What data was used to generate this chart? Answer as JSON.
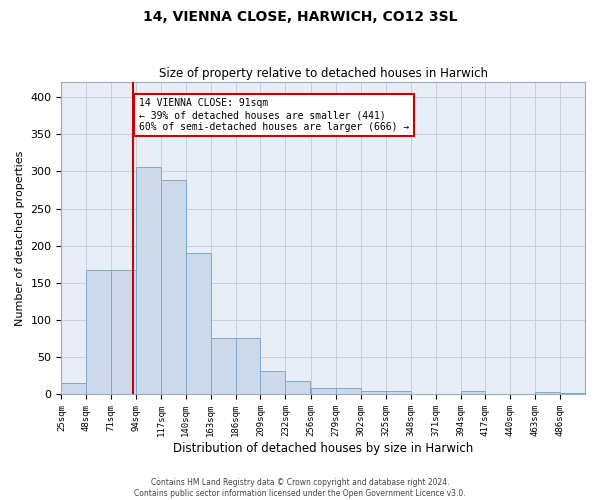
{
  "title": "14, VIENNA CLOSE, HARWICH, CO12 3SL",
  "subtitle": "Size of property relative to detached houses in Harwich",
  "xlabel": "Distribution of detached houses by size in Harwich",
  "ylabel": "Number of detached properties",
  "bar_color": "#ccd9ea",
  "bar_edgecolor": "#7fa8cc",
  "grid_color": "#c8d0dc",
  "background_color": "#e8eef5",
  "vline_x": 91,
  "vline_color": "#cc0000",
  "annotation_line1": "14 VIENNA CLOSE: 91sqm",
  "annotation_line2": "← 39% of detached houses are smaller (441)",
  "annotation_line3": "60% of semi-detached houses are larger (666) →",
  "annotation_box_color": "#cc0000",
  "footer_line1": "Contains HM Land Registry data © Crown copyright and database right 2024.",
  "footer_line2": "Contains public sector information licensed under the Open Government Licence v3.0.",
  "bin_edges": [
    25,
    48,
    71,
    94,
    117,
    140,
    163,
    186,
    209,
    232,
    256,
    279,
    302,
    325,
    348,
    371,
    394,
    417,
    440,
    463,
    486,
    509
  ],
  "values": [
    15,
    168,
    168,
    306,
    288,
    190,
    76,
    76,
    32,
    18,
    9,
    9,
    5,
    5,
    0,
    0,
    4,
    0,
    0,
    3,
    2
  ],
  "ylim": [
    0,
    420
  ],
  "yticks": [
    0,
    50,
    100,
    150,
    200,
    250,
    300,
    350,
    400
  ],
  "tick_labels": [
    "25sqm",
    "48sqm",
    "71sqm",
    "94sqm",
    "117sqm",
    "140sqm",
    "163sqm",
    "186sqm",
    "209sqm",
    "232sqm",
    "256sqm",
    "279sqm",
    "302sqm",
    "325sqm",
    "348sqm",
    "371sqm",
    "394sqm",
    "417sqm",
    "440sqm",
    "463sqm",
    "486sqm"
  ]
}
